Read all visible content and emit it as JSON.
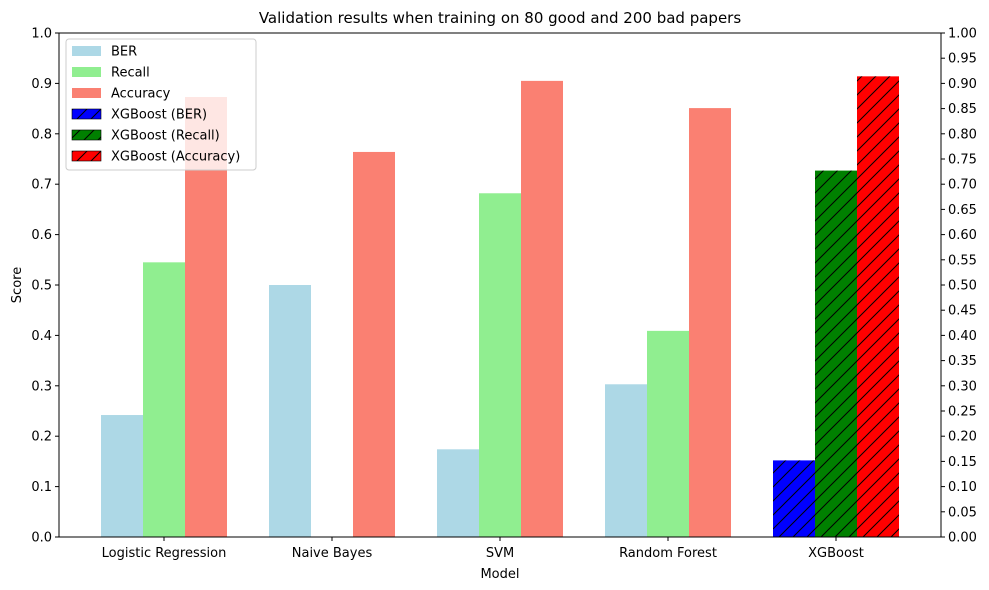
{
  "chart_data": {
    "type": "bar",
    "title": "Validation results when training on 80 good and 200 bad papers",
    "xlabel": "Model",
    "ylabel": "Score",
    "ylim": [
      0,
      1.0
    ],
    "categories": [
      "Logistic Regression",
      "Naive Bayes",
      "SVM",
      "Random Forest",
      "XGBoost"
    ],
    "series": [
      {
        "name": "BER",
        "color": "#add8e6",
        "hatch": false,
        "values": [
          0.242,
          0.5,
          0.174,
          0.303,
          null
        ]
      },
      {
        "name": "Recall",
        "color": "#90ee90",
        "hatch": false,
        "values": [
          0.545,
          0.0,
          0.682,
          0.409,
          null
        ]
      },
      {
        "name": "Accuracy",
        "color": "#fa8072",
        "hatch": false,
        "values": [
          0.873,
          0.764,
          0.905,
          0.851,
          null
        ]
      },
      {
        "name": "XGBoost (BER)",
        "color": "#0000ff",
        "hatch": true,
        "values": [
          null,
          null,
          null,
          null,
          0.152
        ]
      },
      {
        "name": "XGBoost (Recall)",
        "color": "#008000",
        "hatch": true,
        "values": [
          null,
          null,
          null,
          null,
          0.727
        ]
      },
      {
        "name": "XGBoost (Accuracy)",
        "color": "#ff0000",
        "hatch": true,
        "values": [
          null,
          null,
          null,
          null,
          0.914
        ]
      }
    ],
    "left_ticks": [
      "0.0",
      "0.1",
      "0.2",
      "0.3",
      "0.4",
      "0.5",
      "0.6",
      "0.7",
      "0.8",
      "0.9",
      "1.0"
    ],
    "right_ticks": [
      "0.00",
      "0.05",
      "0.10",
      "0.15",
      "0.20",
      "0.25",
      "0.30",
      "0.35",
      "0.40",
      "0.45",
      "0.50",
      "0.55",
      "0.60",
      "0.65",
      "0.70",
      "0.75",
      "0.80",
      "0.85",
      "0.90",
      "0.95",
      "1.00"
    ],
    "legend_position": "top-left",
    "grid": false
  }
}
